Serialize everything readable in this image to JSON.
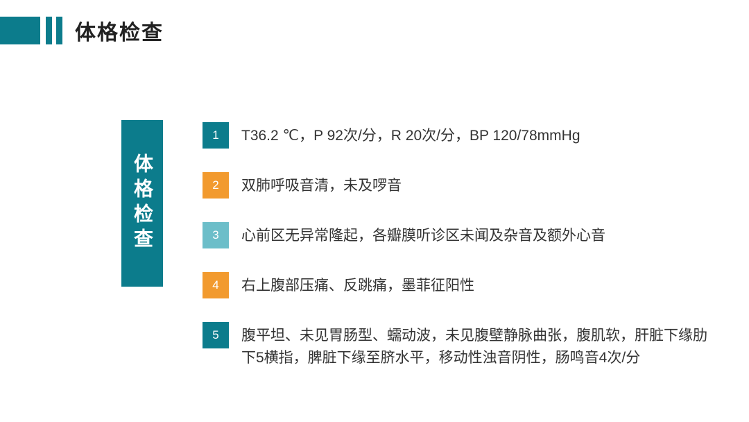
{
  "colors": {
    "teal": "#0c7c8c",
    "orange": "#f29a2e",
    "lightTeal": "#6cbec9",
    "headerText": "#222222",
    "bodyText": "#333333"
  },
  "header": {
    "title": "体格检查"
  },
  "leftBox": {
    "label": "体格检查"
  },
  "items": [
    {
      "num": "1",
      "color": "teal",
      "text": "T36.2 ℃，P 92次/分，R 20次/分，BP 120/78mmHg"
    },
    {
      "num": "2",
      "color": "orange",
      "text": "双肺呼吸音清，未及啰音"
    },
    {
      "num": "3",
      "color": "lightTeal",
      "text": "心前区无异常隆起，各瓣膜听诊区未闻及杂音及额外心音"
    },
    {
      "num": "4",
      "color": "orange",
      "text": "右上腹部压痛、反跳痛，墨菲征阳性"
    },
    {
      "num": "5",
      "color": "teal",
      "text": "腹平坦、未见胃肠型、蠕动波，未见腹壁静脉曲张，腹肌软，肝脏下缘肋下5横指，脾脏下缘至脐水平，移动性浊音阴性，肠鸣音4次/分"
    }
  ]
}
